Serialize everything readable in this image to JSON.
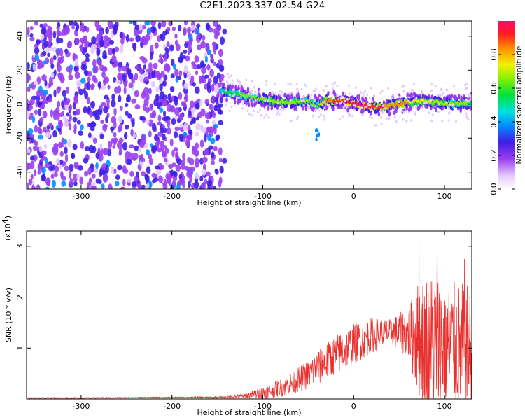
{
  "page": {
    "title": "C2E1.2023.337.02.54.G24"
  },
  "chart_data": [
    {
      "type": "heatmap",
      "xlabel": "Height of straight line (km)",
      "ylabel": "Frequency (Hz)",
      "xlim": [
        -360,
        130
      ],
      "ylim": [
        -50,
        49
      ],
      "x_ticks": [
        -300,
        -200,
        -100,
        0,
        100
      ],
      "y_ticks": [
        -40,
        -20,
        0,
        20,
        40
      ],
      "x_tick_labels": [
        "-300",
        "-200",
        "-100",
        "0",
        "100"
      ],
      "y_tick_labels": [
        "-40",
        "-20",
        "0",
        "20",
        "40"
      ],
      "noise_region": {
        "x_from": -360,
        "x_to": -142,
        "description_level": 0.3
      },
      "ridge": {
        "x": [
          -145,
          -130,
          -110,
          -90,
          -70,
          -50,
          -40,
          -30,
          -10,
          10,
          30,
          50,
          70,
          90,
          110,
          130
        ],
        "frequency": [
          8,
          6,
          4,
          2,
          1,
          2,
          -1,
          2,
          2,
          -1,
          -2,
          0,
          2,
          1,
          0,
          1
        ],
        "amplitude": [
          0.45,
          0.55,
          0.6,
          0.65,
          0.65,
          0.6,
          0.55,
          0.8,
          0.9,
          0.95,
          0.85,
          0.8,
          0.7,
          0.65,
          0.6,
          0.55
        ]
      },
      "secondary_feature": {
        "x": [
          -42,
          -38
        ],
        "frequency": [
          -18,
          -20
        ],
        "amplitude": 0.3
      },
      "colorbar": {
        "label": "Normalized spectral amplitude",
        "range": [
          0,
          1
        ],
        "ticks": [
          0.0,
          0.2,
          0.4,
          0.6,
          0.8
        ],
        "tick_labels": [
          "0.0",
          "0.2",
          "0.4",
          "0.6",
          "0.8"
        ]
      }
    },
    {
      "type": "line",
      "xlabel": "Height of straight line (km)",
      "ylabel": "SNR (10 * v/v)",
      "y_multiplier": "(x10",
      "y_multiplier_exp": "4",
      "y_multiplier_close": ")",
      "xlim": [
        -360,
        130
      ],
      "ylim": [
        0,
        3.3
      ],
      "x_ticks": [
        -300,
        -200,
        -100,
        0,
        100
      ],
      "y_ticks": [
        1,
        2,
        3
      ],
      "x_tick_labels": [
        "-300",
        "-200",
        "-100",
        "0",
        "100"
      ],
      "y_tick_labels": [
        "1",
        "2",
        "3"
      ],
      "color": "#e8302e",
      "series": [
        {
          "x": [
            -360,
            -300,
            -200,
            -140,
            -120,
            -100,
            -80,
            -60,
            -40,
            -20,
            0,
            20,
            40,
            60,
            70,
            80,
            90,
            100,
            110,
            120,
            130
          ],
          "trend": [
            0.02,
            0.02,
            0.03,
            0.03,
            0.06,
            0.12,
            0.22,
            0.38,
            0.6,
            0.85,
            1.08,
            1.25,
            1.32,
            1.3,
            1.2,
            1.1,
            1.1,
            1.05,
            1.0,
            1.0,
            1.0
          ],
          "spread": [
            0.01,
            0.01,
            0.01,
            0.02,
            0.05,
            0.12,
            0.18,
            0.25,
            0.35,
            0.4,
            0.4,
            0.35,
            0.25,
            0.5,
            1.1,
            1.4,
            1.4,
            1.3,
            1.3,
            1.3,
            1.2
          ],
          "peaks": [
            {
              "x": 72,
              "y": 3.3
            },
            {
              "x": 92,
              "y": 3.15
            },
            {
              "x": 122,
              "y": 2.75
            }
          ]
        }
      ]
    }
  ]
}
